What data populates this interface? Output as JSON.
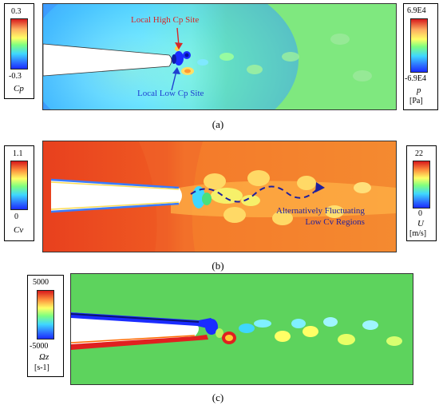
{
  "panels": [
    {
      "caption": "(a)",
      "left_bar": {
        "max": "0.3",
        "min": "-0.3",
        "symbol": "Cp"
      },
      "right_bar": {
        "max": "6.9E4",
        "min": "-6.9E4",
        "symbol": "p",
        "unit": "[Pa]"
      },
      "annotations": [
        "Local High Cp Site",
        "Local Low Cp Site"
      ],
      "colors": {
        "high": "#d62828",
        "low": "#1f3fd1"
      }
    },
    {
      "caption": "(b)",
      "left_bar": {
        "max": "1.1",
        "min": "0",
        "symbol": "Cv"
      },
      "right_bar": {
        "max": "22",
        "min": "0",
        "symbol": "U",
        "unit": "[m/s]"
      },
      "annotations": [
        "Alternatively Fluctuating",
        "Low Cv Regions"
      ],
      "colors": {
        "annotation": "#1f1f9e"
      }
    },
    {
      "caption": "(c)",
      "left_bar": {
        "max": "5000",
        "min": "-5000",
        "symbol": "Ωz",
        "unit": "[s-1]"
      }
    }
  ]
}
